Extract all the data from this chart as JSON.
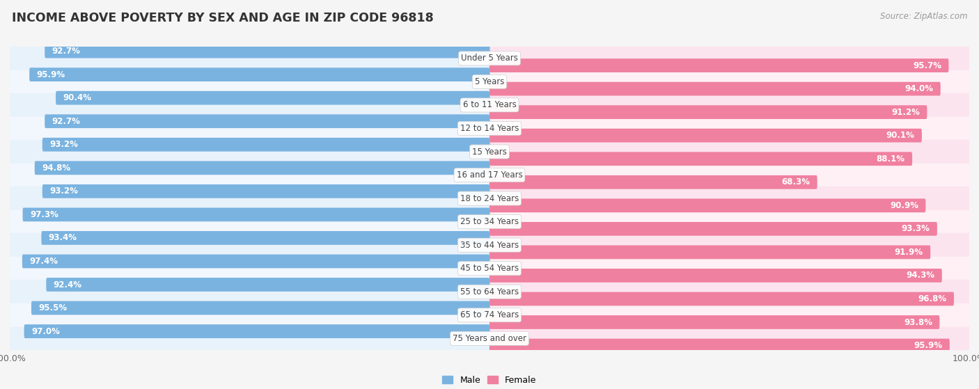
{
  "title": "INCOME ABOVE POVERTY BY SEX AND AGE IN ZIP CODE 96818",
  "source": "Source: ZipAtlas.com",
  "categories": [
    "Under 5 Years",
    "5 Years",
    "6 to 11 Years",
    "12 to 14 Years",
    "15 Years",
    "16 and 17 Years",
    "18 to 24 Years",
    "25 to 34 Years",
    "35 to 44 Years",
    "45 to 54 Years",
    "55 to 64 Years",
    "65 to 74 Years",
    "75 Years and over"
  ],
  "male_values": [
    92.7,
    95.9,
    90.4,
    92.7,
    93.2,
    94.8,
    93.2,
    97.3,
    93.4,
    97.4,
    92.4,
    95.5,
    97.0
  ],
  "female_values": [
    95.7,
    94.0,
    91.2,
    90.1,
    88.1,
    68.3,
    90.9,
    93.3,
    91.9,
    94.3,
    96.8,
    93.8,
    95.9
  ],
  "male_color": "#7ab3e0",
  "female_color": "#f080a0",
  "male_bg_color": "#dce8f5",
  "female_bg_color": "#fad0df",
  "row_bg_even_male": "#e8f2fb",
  "row_bg_even_female": "#fce4ef",
  "row_bg_odd_male": "#f2f7fd",
  "row_bg_odd_female": "#fef0f5",
  "male_label": "Male",
  "female_label": "Female",
  "cat_label_color": "#444444",
  "title_color": "#333333",
  "source_color": "#999999",
  "tick_color": "#666666",
  "title_fontsize": 12.5,
  "source_fontsize": 8.5,
  "bar_value_fontsize": 8.5,
  "cat_label_fontsize": 8.5,
  "tick_fontsize": 9,
  "legend_fontsize": 9,
  "background_color": "#f5f5f5"
}
